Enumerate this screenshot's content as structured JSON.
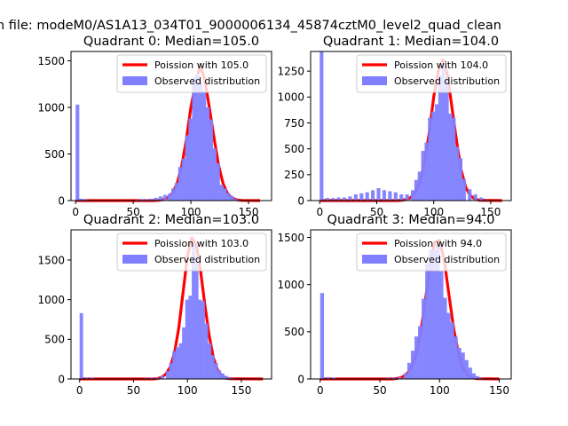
{
  "figure": {
    "suptitle": "n file: modeM0/AS1A13_034T01_9000006134_45874cztM0_level2_quad_clean"
  },
  "chart_data": [
    {
      "type": "bar",
      "title": "Quadrant 0: Median=105.0",
      "xlim": [
        -4,
        170
      ],
      "ylim": [
        0,
        1600
      ],
      "xticks": [
        0,
        50,
        100,
        150
      ],
      "yticks": [
        0,
        500,
        1000,
        1500
      ],
      "median": 105.0,
      "bin_width": 3.2,
      "legend": {
        "position": "upper right",
        "entries": [
          "Poission with 105.0",
          "Observed distribution"
        ]
      },
      "series": [
        {
          "name": "Poission with 105.0",
          "kind": "line",
          "color": "#ff0000",
          "x": [
            0,
            68,
            72,
            76,
            80,
            84,
            88,
            92,
            96,
            100,
            104,
            108,
            112,
            116,
            120,
            124,
            128,
            132,
            136,
            140,
            144,
            160
          ],
          "y": [
            0,
            0,
            3,
            10,
            30,
            80,
            180,
            370,
            650,
            1000,
            1250,
            1450,
            1300,
            1000,
            680,
            380,
            180,
            70,
            25,
            8,
            2,
            0
          ]
        },
        {
          "name": "Observed distribution",
          "kind": "hist",
          "color": "#7f7fff",
          "x": [
            0,
            3.2,
            6.4,
            52,
            56,
            60,
            64,
            68,
            72,
            76,
            80,
            83,
            86,
            89,
            92,
            95,
            98,
            101,
            104,
            107,
            110,
            113,
            116,
            119,
            122,
            125,
            128,
            131,
            134,
            137,
            140,
            146
          ],
          "y": [
            1030,
            20,
            15,
            10,
            15,
            15,
            20,
            30,
            45,
            60,
            75,
            130,
            190,
            360,
            450,
            700,
            880,
            1320,
            1360,
            1260,
            1180,
            1000,
            870,
            560,
            400,
            170,
            130,
            80,
            50,
            20,
            10,
            5
          ]
        }
      ]
    },
    {
      "type": "bar",
      "title": "Quadrant 1: Median=104.0",
      "xlim": [
        -8,
        168
      ],
      "ylim": [
        0,
        1440
      ],
      "xticks": [
        0,
        50,
        100,
        150
      ],
      "yticks": [
        0,
        250,
        500,
        750,
        1000,
        1250
      ],
      "median": 104.0,
      "bin_width": 3.2,
      "legend": {
        "position": "upper right",
        "entries": [
          "Poission with 104.0",
          "Observed distribution"
        ]
      },
      "series": [
        {
          "name": "Poission with 104.0",
          "kind": "line",
          "color": "#ff0000",
          "x": [
            0,
            68,
            72,
            76,
            80,
            84,
            88,
            92,
            96,
            100,
            104,
            108,
            112,
            116,
            120,
            124,
            128,
            132,
            136,
            140,
            160
          ],
          "y": [
            0,
            0,
            3,
            10,
            30,
            80,
            180,
            370,
            650,
            1000,
            1250,
            1360,
            1220,
            900,
            580,
            300,
            130,
            50,
            15,
            3,
            0
          ]
        },
        {
          "name": "Observed distribution",
          "kind": "hist",
          "color": "#7f7fff",
          "x": [
            0,
            5,
            10,
            15,
            20,
            25,
            30,
            35,
            40,
            45,
            50,
            55,
            60,
            65,
            70,
            75,
            80,
            83,
            86,
            89,
            92,
            95,
            98,
            101,
            104,
            107,
            110,
            113,
            116,
            119,
            122,
            125,
            130,
            135,
            140,
            145
          ],
          "y": [
            1440,
            25,
            25,
            30,
            30,
            40,
            60,
            70,
            80,
            100,
            120,
            100,
            90,
            80,
            60,
            60,
            100,
            200,
            280,
            480,
            560,
            800,
            860,
            930,
            1210,
            1330,
            1180,
            840,
            800,
            520,
            410,
            210,
            110,
            60,
            30,
            10
          ]
        }
      ]
    },
    {
      "type": "bar",
      "title": "Quadrant 2: Median=103.0",
      "xlim": [
        -8,
        178
      ],
      "ylim": [
        0,
        1880
      ],
      "xticks": [
        0,
        50,
        100,
        150
      ],
      "yticks": [
        0,
        500,
        1000,
        1500
      ],
      "median": 103.0,
      "bin_width": 3.2,
      "legend": {
        "position": "upper right",
        "entries": [
          "Poission with 103.0",
          "Observed distribution"
        ]
      },
      "series": [
        {
          "name": "Poission with 103.0",
          "kind": "line",
          "color": "#ff0000",
          "x": [
            0,
            68,
            72,
            76,
            80,
            84,
            88,
            92,
            96,
            100,
            104,
            108,
            112,
            116,
            120,
            124,
            128,
            132,
            136,
            140,
            170
          ],
          "y": [
            0,
            0,
            5,
            20,
            60,
            150,
            330,
            650,
            1100,
            1550,
            1780,
            1700,
            1380,
            950,
            560,
            270,
            110,
            35,
            10,
            3,
            0
          ]
        },
        {
          "name": "Observed distribution",
          "kind": "hist",
          "color": "#7f7fff",
          "x": [
            0,
            5,
            10,
            60,
            65,
            70,
            75,
            80,
            83,
            86,
            89,
            92,
            95,
            98,
            101,
            104,
            107,
            110,
            113,
            116,
            119,
            122,
            125,
            128,
            131,
            134,
            137,
            140
          ],
          "y": [
            830,
            20,
            15,
            10,
            15,
            20,
            40,
            100,
            200,
            350,
            400,
            450,
            650,
            1000,
            1050,
            1700,
            1550,
            1000,
            980,
            700,
            450,
            300,
            200,
            110,
            70,
            40,
            20,
            10
          ]
        }
      ]
    },
    {
      "type": "bar",
      "title": "Quadrant 3: Median=94.0",
      "xlim": [
        -8,
        160
      ],
      "ylim": [
        0,
        1580
      ],
      "xticks": [
        0,
        50,
        100,
        150
      ],
      "yticks": [
        0,
        500,
        1000,
        1500
      ],
      "median": 94.0,
      "bin_width": 3.2,
      "legend": {
        "position": "upper right",
        "entries": [
          "Poission with 94.0",
          "Observed distribution"
        ]
      },
      "series": [
        {
          "name": "Poission with 94.0",
          "kind": "line",
          "color": "#ff0000",
          "x": [
            0,
            60,
            64,
            68,
            72,
            76,
            80,
            84,
            88,
            92,
            96,
            100,
            104,
            108,
            112,
            116,
            120,
            124,
            128,
            132,
            150
          ],
          "y": [
            0,
            0,
            5,
            15,
            45,
            110,
            240,
            480,
            820,
            1200,
            1450,
            1470,
            1250,
            880,
            520,
            260,
            105,
            35,
            10,
            3,
            0
          ]
        },
        {
          "name": "Observed distribution",
          "kind": "hist",
          "color": "#7f7fff",
          "x": [
            0,
            5,
            10,
            55,
            60,
            65,
            70,
            73,
            76,
            79,
            82,
            85,
            88,
            91,
            94,
            97,
            100,
            103,
            106,
            109,
            112,
            115,
            118,
            121,
            124,
            127,
            130,
            133
          ],
          "y": [
            910,
            20,
            15,
            10,
            15,
            20,
            60,
            170,
            300,
            450,
            560,
            850,
            1230,
            1370,
            1370,
            1440,
            1140,
            860,
            700,
            600,
            450,
            330,
            280,
            200,
            120,
            60,
            30,
            10
          ]
        }
      ]
    }
  ]
}
